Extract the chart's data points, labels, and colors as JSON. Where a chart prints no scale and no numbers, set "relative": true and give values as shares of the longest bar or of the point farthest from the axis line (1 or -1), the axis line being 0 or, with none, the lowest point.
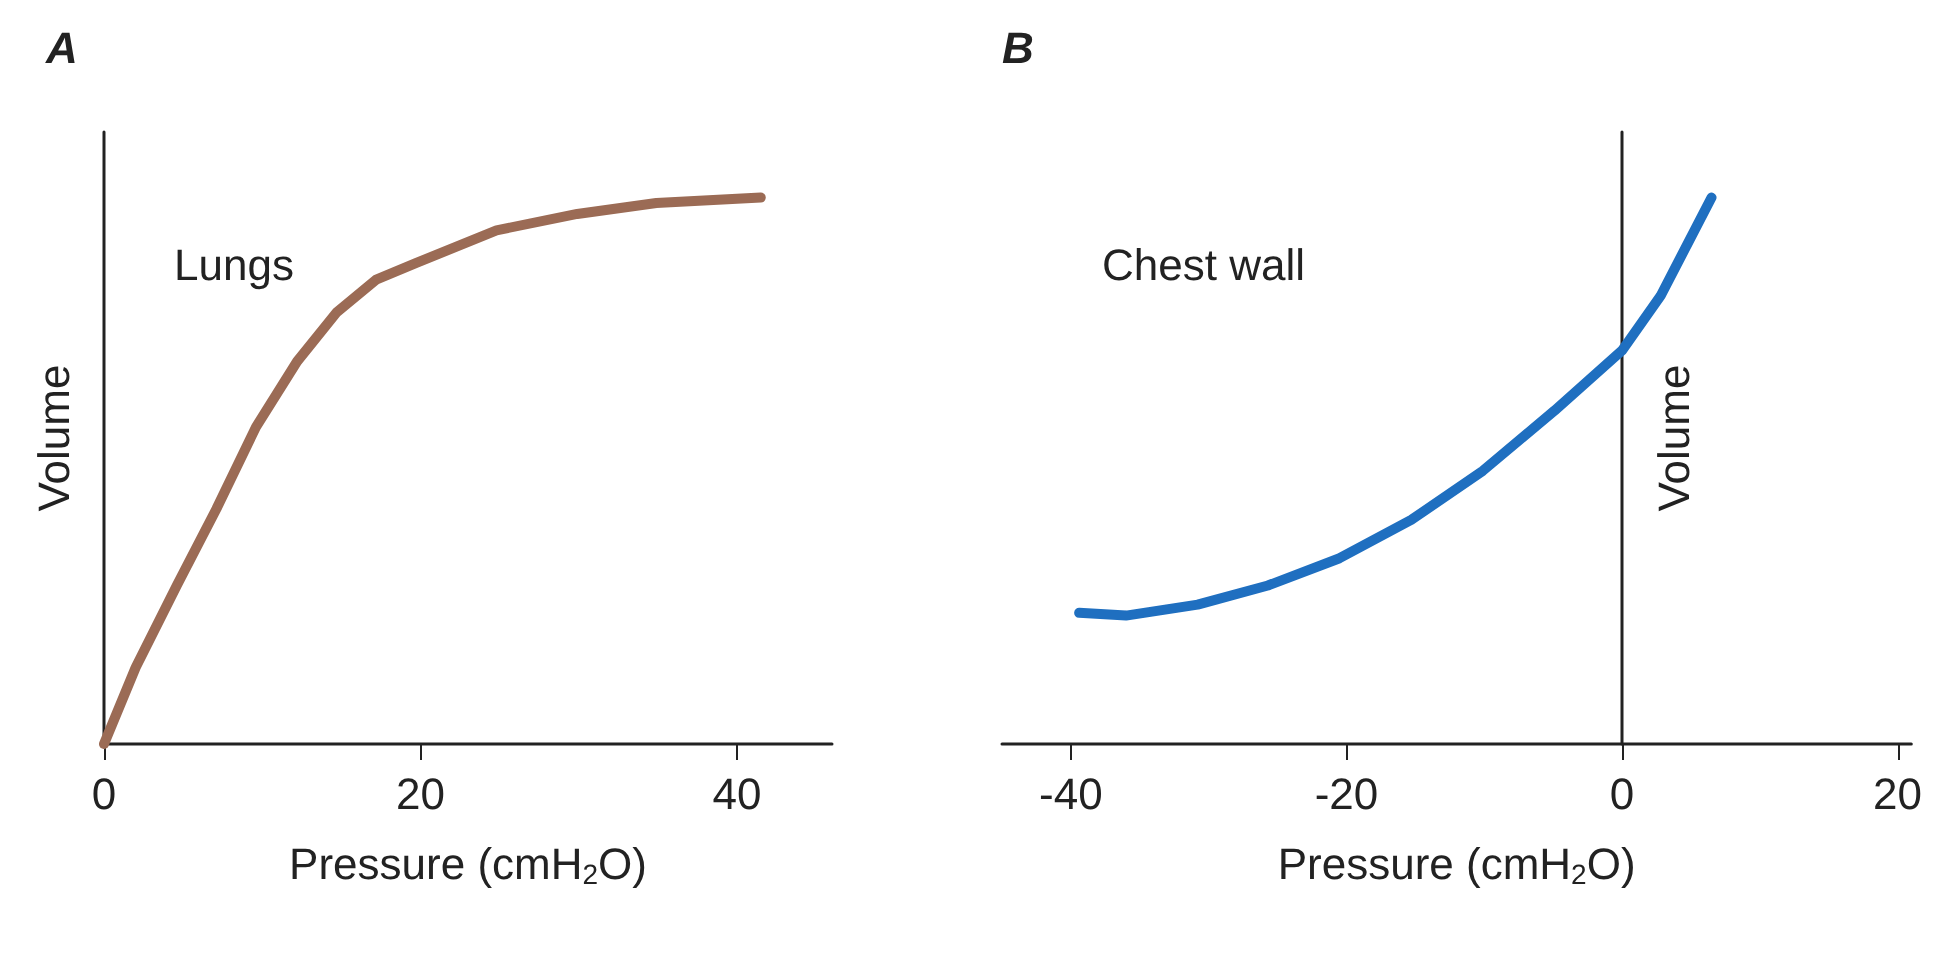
{
  "chart_data": [
    {
      "type": "line",
      "title": "A",
      "xlabel": "Pressure (cmH$_{2}$O)",
      "ylabel": "Volume",
      "relative": true,
      "tick_labels": "x",
      "xlim": [
        0,
        46
      ],
      "xticks": [
        0,
        20,
        40
      ],
      "marker": "none",
      "line_style": "solid",
      "series": [
        {
          "name": "Lungs",
          "color": "#9b6b55",
          "x": [
            0,
            2,
            4.6,
            7.1,
            9.6,
            12.2,
            14.7,
            17.2,
            19.7,
            24.8,
            29.9,
            34.9,
            41.5
          ],
          "values": [
            0,
            0.14,
            0.29,
            0.43,
            0.58,
            0.7,
            0.79,
            0.85,
            0.88,
            0.94,
            0.97,
            0.99,
            1
          ]
        }
      ]
    },
    {
      "type": "line",
      "title": "B",
      "xlabel": "Pressure (cmH$_{2}$O)",
      "ylabel": "Volume",
      "relative": true,
      "tick_labels": "x",
      "xlim": [
        -45,
        21
      ],
      "xticks": [
        -40,
        -20,
        0,
        20
      ],
      "marker": "none",
      "line_style": "solid",
      "series": [
        {
          "name": "Chest wall",
          "color": "#1f6fc0",
          "x": [
            -39.4,
            -36,
            -30.8,
            -25.7,
            -20.5,
            -15.3,
            -10.1,
            -4.9,
            0,
            2.8,
            6.5
          ],
          "values": [
            0.24,
            0.235,
            0.255,
            0.29,
            0.34,
            0.41,
            0.5,
            0.61,
            0.72,
            0.82,
            1
          ]
        }
      ]
    }
  ]
}
